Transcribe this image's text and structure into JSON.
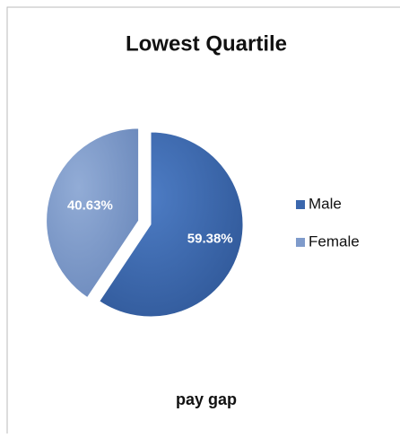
{
  "chart_data": {
    "type": "pie",
    "title": "Lowest Quartile",
    "xlabel": "pay gap",
    "categories": [
      "Male",
      "Female"
    ],
    "values": [
      59.38,
      40.63
    ],
    "value_labels": [
      "59.38%",
      "40.63%"
    ],
    "colors": [
      "#3b67ad",
      "#7f9bcb"
    ],
    "legend": "right"
  }
}
